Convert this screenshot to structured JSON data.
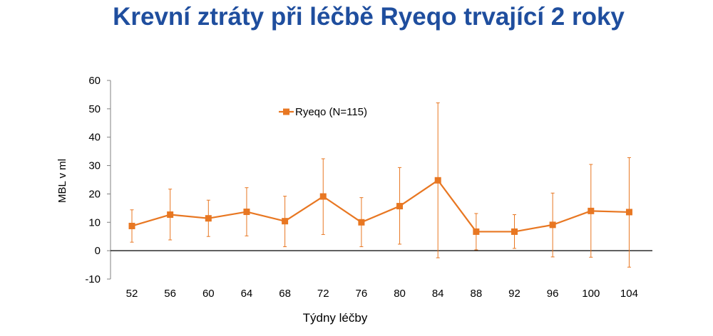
{
  "page": {
    "title": "Krevní ztráty při léčbě Ryeqo trvající 2 roky"
  },
  "colors": {
    "title": "#1f4e9e",
    "series": "#e87722",
    "axis": "#000000",
    "tick_line": "#808080"
  },
  "chart_data": {
    "type": "line",
    "title": "Krevní ztráty při léčbě Ryeqo trvající 2 roky",
    "xlabel": "Týdny léčby",
    "ylabel": "MBL v ml",
    "ylim": [
      -10,
      60
    ],
    "yticks": [
      -10,
      0,
      10,
      20,
      30,
      40,
      50,
      60
    ],
    "categories": [
      "52",
      "56",
      "60",
      "64",
      "68",
      "72",
      "76",
      "80",
      "84",
      "88",
      "92",
      "96",
      "100",
      "104"
    ],
    "grid": false,
    "legend_position": "top-center",
    "series": [
      {
        "name": "Ryeqo (N=115)",
        "marker": "square",
        "values": [
          8.7,
          12.7,
          11.4,
          13.7,
          10.4,
          19.1,
          10.0,
          15.7,
          24.8,
          6.7,
          6.7,
          9.1,
          14.0,
          13.6
        ],
        "error_low": [
          3.0,
          3.8,
          5.0,
          5.2,
          1.4,
          5.7,
          1.4,
          2.3,
          -2.5,
          0.3,
          0.8,
          -2.2,
          -2.3,
          -5.8
        ],
        "error_high": [
          14.4,
          21.7,
          17.8,
          22.2,
          19.2,
          32.4,
          18.7,
          29.3,
          52.1,
          13.1,
          12.7,
          20.3,
          30.4,
          32.8
        ]
      }
    ]
  }
}
